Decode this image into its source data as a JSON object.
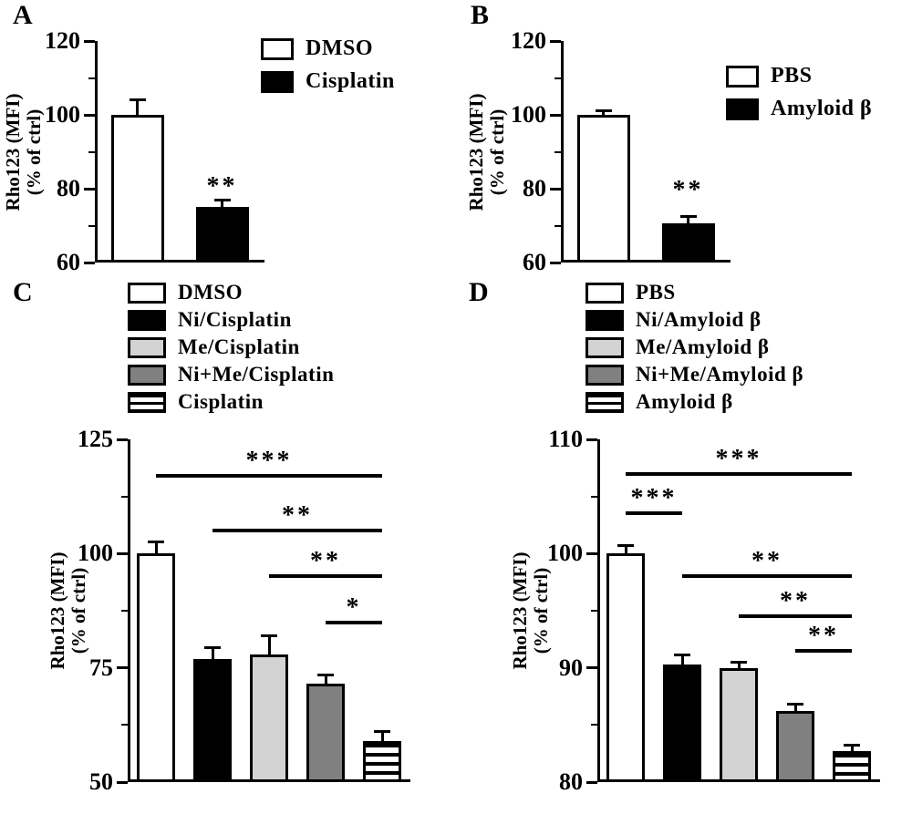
{
  "colors": {
    "black": "#000000",
    "white": "#ffffff",
    "light_gray": "#d3d3d3",
    "dark_gray": "#808080"
  },
  "chart_data": [
    {
      "type": "bar",
      "panel_label": "A",
      "ylabel": "Rho123 (MFI) (% of ctrl)",
      "ylabel_lines": [
        "Rho123 (MFI)",
        "(% of ctrl)"
      ],
      "ylim": [
        60,
        120
      ],
      "yticks": [
        120,
        100,
        80,
        60
      ],
      "yticks_minor": [
        110,
        90,
        70
      ],
      "grid": false,
      "legend_position": "top-right",
      "categories": [
        "DMSO",
        "Cisplatin"
      ],
      "values": [
        100,
        75
      ],
      "errors": [
        4,
        2
      ],
      "fills": [
        "white",
        "black"
      ],
      "legend": [
        {
          "label": "DMSO",
          "fill": "white"
        },
        {
          "label": "Cisplatin",
          "fill": "black"
        }
      ],
      "annotations": [
        {
          "bar": 1,
          "text": "**",
          "y": 77.5
        }
      ],
      "brackets": []
    },
    {
      "type": "bar",
      "panel_label": "B",
      "ylabel": "Rho123 (MFI) (% of ctrl)",
      "ylabel_lines": [
        "Rho123 (MFI)",
        "(% of ctrl)"
      ],
      "ylim": [
        60,
        120
      ],
      "yticks": [
        120,
        100,
        80,
        60
      ],
      "yticks_minor": [
        110,
        90,
        70
      ],
      "grid": false,
      "legend_position": "top-right",
      "categories": [
        "PBS",
        "Amyloid β"
      ],
      "values": [
        100,
        70.5
      ],
      "errors": [
        1,
        2
      ],
      "fills": [
        "white",
        "black"
      ],
      "legend": [
        {
          "label": "PBS",
          "fill": "white"
        },
        {
          "label": "Amyloid β",
          "fill": "black"
        }
      ],
      "annotations": [
        {
          "bar": 1,
          "text": "**",
          "y": 76.5
        }
      ],
      "brackets": []
    },
    {
      "type": "bar",
      "panel_label": "C",
      "ylabel": "Rho123 (MFI) (% of ctrl)",
      "ylabel_lines": [
        "Rho123 (MFI)",
        "(% of ctrl)"
      ],
      "ylim": [
        50,
        125
      ],
      "yticks": [
        125,
        100,
        75,
        50
      ],
      "yticks_minor": [
        112.5,
        87.5,
        62.5
      ],
      "grid": false,
      "legend_position": "top",
      "categories": [
        "DMSO",
        "Ni/Cisplatin",
        "Me/Cisplatin",
        "Ni+Me/Cisplatin",
        "Cisplatin"
      ],
      "values": [
        100,
        77,
        78,
        71.5,
        59
      ],
      "errors": [
        2.5,
        2.5,
        4,
        2,
        2
      ],
      "fills": [
        "white",
        "black",
        "lightgray",
        "darkgray",
        "stripes"
      ],
      "legend": [
        {
          "label": "DMSO",
          "fill": "white"
        },
        {
          "label": "Ni/Cisplatin",
          "fill": "black"
        },
        {
          "label": "Me/Cisplatin",
          "fill": "lightgray"
        },
        {
          "label": "Ni+Me/Cisplatin",
          "fill": "darkgray"
        },
        {
          "label": "Cisplatin",
          "fill": "stripes"
        }
      ],
      "annotations": [],
      "brackets": [
        {
          "from": 0,
          "to": 4,
          "y": 117,
          "text": "***"
        },
        {
          "from": 1,
          "to": 4,
          "y": 105,
          "text": "**"
        },
        {
          "from": 2,
          "to": 4,
          "y": 95,
          "text": "**"
        },
        {
          "from": 3,
          "to": 4,
          "y": 85,
          "text": "*"
        }
      ]
    },
    {
      "type": "bar",
      "panel_label": "D",
      "ylabel": "Rho123 (MFI) (% of ctrl)",
      "ylabel_lines": [
        "Rho123 (MFI)",
        "(% of ctrl)"
      ],
      "ylim": [
        80,
        110
      ],
      "yticks": [
        110,
        100,
        90,
        80
      ],
      "yticks_minor": [
        105,
        95,
        85
      ],
      "grid": false,
      "legend_position": "top",
      "categories": [
        "PBS",
        "Ni/Amyloid β",
        "Me/Amyloid β",
        "Ni+Me/Amyloid β",
        "Amyloid β"
      ],
      "values": [
        100,
        90.3,
        90,
        86.2,
        82.7
      ],
      "errors": [
        0.7,
        0.8,
        0.5,
        0.6,
        0.5
      ],
      "fills": [
        "white",
        "black",
        "lightgray",
        "darkgray",
        "stripes"
      ],
      "legend": [
        {
          "label": "PBS",
          "fill": "white"
        },
        {
          "label": "Ni/Amyloid β",
          "fill": "black"
        },
        {
          "label": "Me/Amyloid β",
          "fill": "lightgray"
        },
        {
          "label": "Ni+Me/Amyloid β",
          "fill": "darkgray"
        },
        {
          "label": "Amyloid β",
          "fill": "stripes"
        }
      ],
      "annotations": [],
      "brackets": [
        {
          "from": 0,
          "to": 4,
          "y": 107,
          "text": "***"
        },
        {
          "from": 0,
          "to": 1,
          "y": 103.5,
          "text": "***"
        },
        {
          "from": 1,
          "to": 4,
          "y": 98,
          "text": "**"
        },
        {
          "from": 2,
          "to": 4,
          "y": 94.5,
          "text": "**"
        },
        {
          "from": 3,
          "to": 4,
          "y": 91.5,
          "text": "**"
        }
      ]
    }
  ]
}
